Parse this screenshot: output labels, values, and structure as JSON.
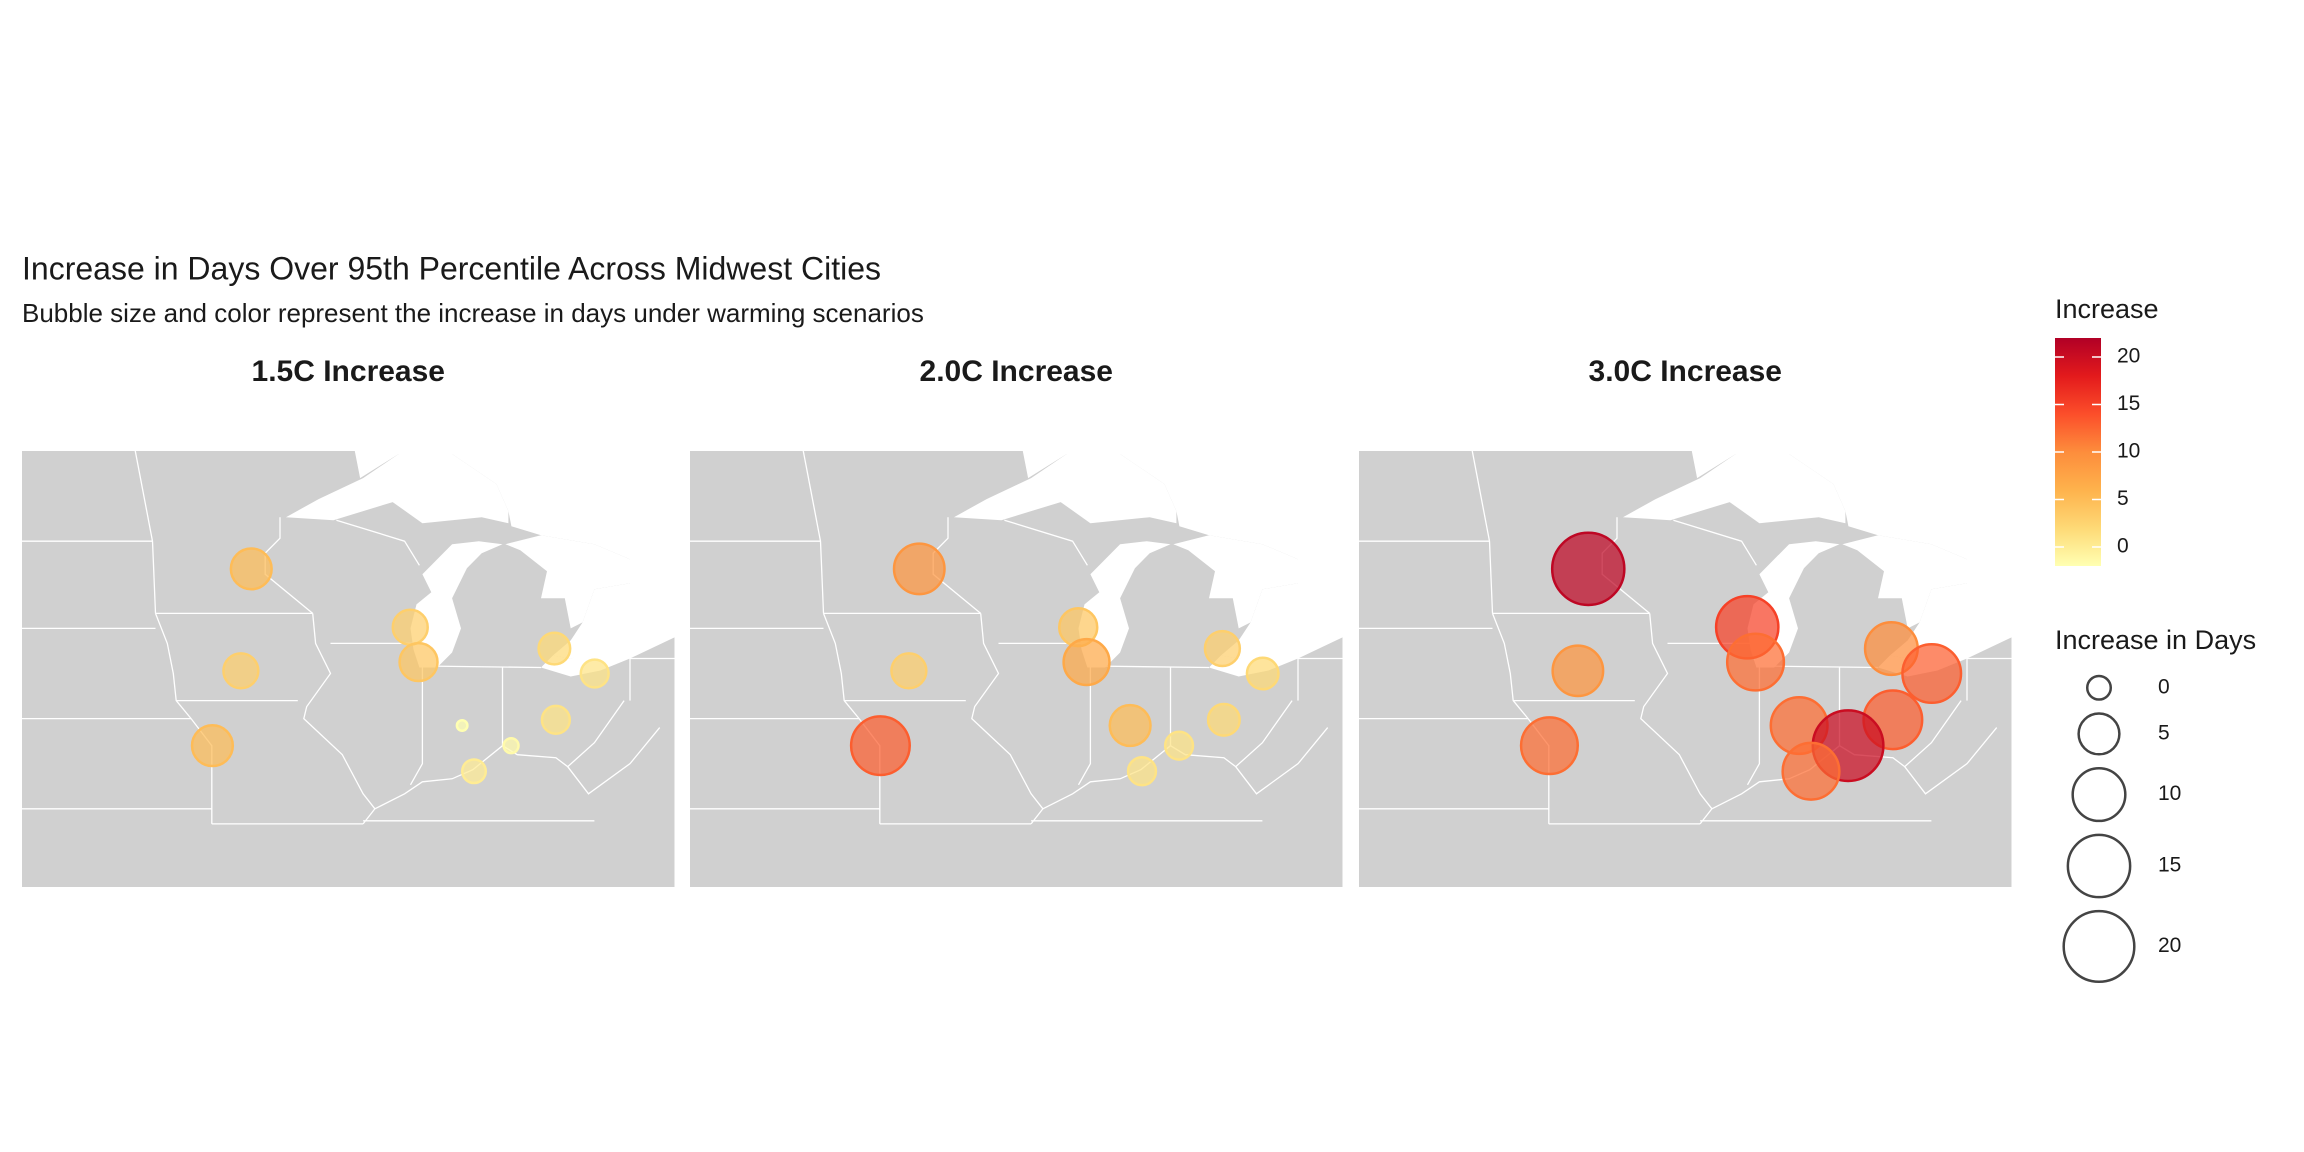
{
  "title": "Increase in Days Over 95th Percentile Across Midwest Cities",
  "subtitle": "Bubble size and color represent the increase in days under warming scenarios",
  "chart_data": [
    {
      "type": "bubble-map",
      "title": "1.5C Increase",
      "x": [
        -93.27,
        -87.91,
        -87.63,
        -83.05,
        -81.69,
        -93.62,
        -94.58,
        -86.16,
        -83.0,
        -84.51,
        -85.76
      ],
      "y": [
        44.98,
        43.04,
        41.88,
        42.33,
        41.5,
        41.59,
        39.1,
        39.77,
        39.96,
        39.1,
        38.25
      ],
      "values": [
        5,
        3,
        4,
        2,
        1,
        3,
        5,
        -2,
        1,
        -1.5,
        0
      ],
      "xlim": [
        -101,
        -79
      ],
      "ylim": [
        34.4,
        48.9
      ]
    },
    {
      "type": "bubble-map",
      "title": "2.0C Increase",
      "x": [
        -93.27,
        -87.91,
        -87.63,
        -83.05,
        -81.69,
        -93.62,
        -94.58,
        -86.16,
        -83.0,
        -84.51,
        -85.76
      ],
      "y": [
        44.98,
        43.04,
        41.88,
        42.33,
        41.5,
        41.59,
        39.1,
        39.77,
        39.96,
        39.1,
        38.25
      ],
      "values": [
        9,
        4,
        7,
        3,
        2,
        3,
        13,
        5,
        2,
        1,
        1
      ],
      "xlim": [
        -101,
        -79
      ],
      "ylim": [
        34.4,
        48.9
      ]
    },
    {
      "type": "bubble-map",
      "title": "3.0C Increase",
      "x": [
        -93.27,
        -87.91,
        -87.63,
        -83.05,
        -81.69,
        -93.62,
        -94.58,
        -86.16,
        -83.0,
        -84.51,
        -85.76
      ],
      "y": [
        44.98,
        43.04,
        41.88,
        42.33,
        41.5,
        41.59,
        39.1,
        39.77,
        39.96,
        39.1,
        38.25
      ],
      "values": [
        21,
        15,
        12,
        10,
        13,
        9,
        12,
        12,
        13,
        20,
        12
      ],
      "xlim": [
        -101,
        -79
      ],
      "ylim": [
        34.4,
        48.9
      ]
    }
  ],
  "color_legend": {
    "title": "Increase",
    "lim": [
      -2,
      22
    ],
    "ticks": [
      0,
      5,
      10,
      15,
      20
    ],
    "colors": [
      "#ffffb2",
      "#fed976",
      "#feb24c",
      "#fd8d3c",
      "#fc4e2a",
      "#e31a1c",
      "#b10026"
    ]
  },
  "size_legend": {
    "title": "Increase in Days",
    "lim": [
      -2.5,
      20
    ],
    "values": [
      0,
      5,
      10,
      15,
      20
    ]
  }
}
